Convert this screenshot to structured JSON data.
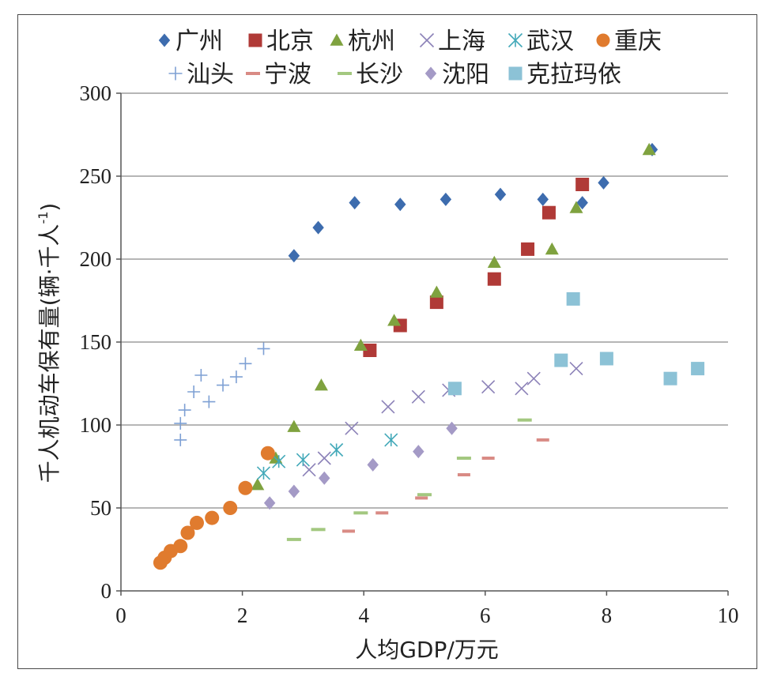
{
  "chart_data": {
    "type": "scatter",
    "title": "",
    "xlabel": "人均GDP/万元",
    "ylabel_main": "千人机动车保有量(辆·千人",
    "ylabel_sup": "-1",
    "ylabel_close": ")",
    "xlim": [
      0,
      10
    ],
    "ylim": [
      0,
      300
    ],
    "xticks": [
      0,
      2,
      4,
      6,
      8,
      10
    ],
    "yticks": [
      0,
      50,
      100,
      150,
      200,
      250,
      300
    ],
    "grid": "horizontal",
    "legend_position": "top",
    "series": [
      {
        "name": "广州",
        "marker": "diamond",
        "color": "#3d6cae",
        "points": [
          [
            2.85,
            202
          ],
          [
            3.25,
            219
          ],
          [
            3.85,
            234
          ],
          [
            4.6,
            233
          ],
          [
            5.35,
            236
          ],
          [
            6.25,
            239
          ],
          [
            6.95,
            236
          ],
          [
            7.6,
            234
          ],
          [
            7.95,
            246
          ],
          [
            8.75,
            266
          ]
        ]
      },
      {
        "name": "北京",
        "marker": "square",
        "color": "#b03a37",
        "points": [
          [
            4.1,
            145
          ],
          [
            4.6,
            160
          ],
          [
            5.2,
            174
          ],
          [
            6.15,
            188
          ],
          [
            6.7,
            206
          ],
          [
            7.05,
            228
          ],
          [
            7.6,
            245
          ]
        ]
      },
      {
        "name": "杭州",
        "marker": "triangle",
        "color": "#7fa23f",
        "points": [
          [
            2.25,
            64
          ],
          [
            2.55,
            80
          ],
          [
            2.85,
            99
          ],
          [
            3.3,
            124
          ],
          [
            3.95,
            148
          ],
          [
            4.5,
            163
          ],
          [
            5.2,
            180
          ],
          [
            6.15,
            198
          ],
          [
            7.1,
            206
          ],
          [
            7.5,
            231
          ],
          [
            8.7,
            266
          ]
        ]
      },
      {
        "name": "上海",
        "marker": "x",
        "color": "#8c82b8",
        "points": [
          [
            3.1,
            73
          ],
          [
            3.35,
            80
          ],
          [
            3.8,
            98
          ],
          [
            4.4,
            111
          ],
          [
            4.9,
            117
          ],
          [
            5.4,
            121
          ],
          [
            6.05,
            123
          ],
          [
            6.6,
            122
          ],
          [
            6.8,
            128
          ],
          [
            7.5,
            134
          ]
        ]
      },
      {
        "name": "武汉",
        "marker": "asterisk",
        "color": "#43a9b9",
        "points": [
          [
            2.35,
            71
          ],
          [
            2.6,
            78
          ],
          [
            3.0,
            79
          ],
          [
            3.55,
            85
          ],
          [
            4.45,
            91
          ]
        ]
      },
      {
        "name": "重庆",
        "marker": "circle",
        "color": "#e07b2e",
        "points": [
          [
            0.65,
            17
          ],
          [
            0.72,
            20
          ],
          [
            0.82,
            24
          ],
          [
            0.98,
            27
          ],
          [
            1.1,
            35
          ],
          [
            1.25,
            41
          ],
          [
            1.5,
            44
          ],
          [
            1.8,
            50
          ],
          [
            2.05,
            62
          ],
          [
            2.42,
            83
          ]
        ]
      },
      {
        "name": "汕头",
        "marker": "plus",
        "color": "#7ea0d4",
        "points": [
          [
            0.98,
            91
          ],
          [
            0.98,
            101
          ],
          [
            1.05,
            109
          ],
          [
            1.2,
            120
          ],
          [
            1.32,
            130
          ],
          [
            1.45,
            114
          ],
          [
            1.68,
            124
          ],
          [
            1.9,
            129
          ],
          [
            2.05,
            137
          ],
          [
            2.35,
            146
          ]
        ]
      },
      {
        "name": "宁波",
        "marker": "dash",
        "color": "#d98b85",
        "points": [
          [
            3.75,
            36
          ],
          [
            4.3,
            47
          ],
          [
            4.95,
            56
          ],
          [
            5.65,
            70
          ],
          [
            6.05,
            80
          ],
          [
            6.95,
            91
          ]
        ]
      },
      {
        "name": "长沙",
        "marker": "dash",
        "color": "#a3c880",
        "points": [
          [
            2.85,
            31
          ],
          [
            3.25,
            37
          ],
          [
            3.95,
            47
          ],
          [
            5.0,
            58
          ],
          [
            5.65,
            80
          ],
          [
            6.65,
            103
          ]
        ]
      },
      {
        "name": "沈阳",
        "marker": "diamond",
        "color": "#a49ac6",
        "points": [
          [
            2.45,
            53
          ],
          [
            2.85,
            60
          ],
          [
            3.35,
            68
          ],
          [
            4.15,
            76
          ],
          [
            4.9,
            84
          ],
          [
            5.45,
            98
          ]
        ]
      },
      {
        "name": "克拉玛依",
        "marker": "square",
        "color": "#8cc2d6",
        "points": [
          [
            5.5,
            122
          ],
          [
            7.25,
            139
          ],
          [
            7.45,
            176
          ],
          [
            8.0,
            140
          ],
          [
            9.05,
            128
          ],
          [
            9.5,
            134
          ]
        ]
      }
    ]
  }
}
